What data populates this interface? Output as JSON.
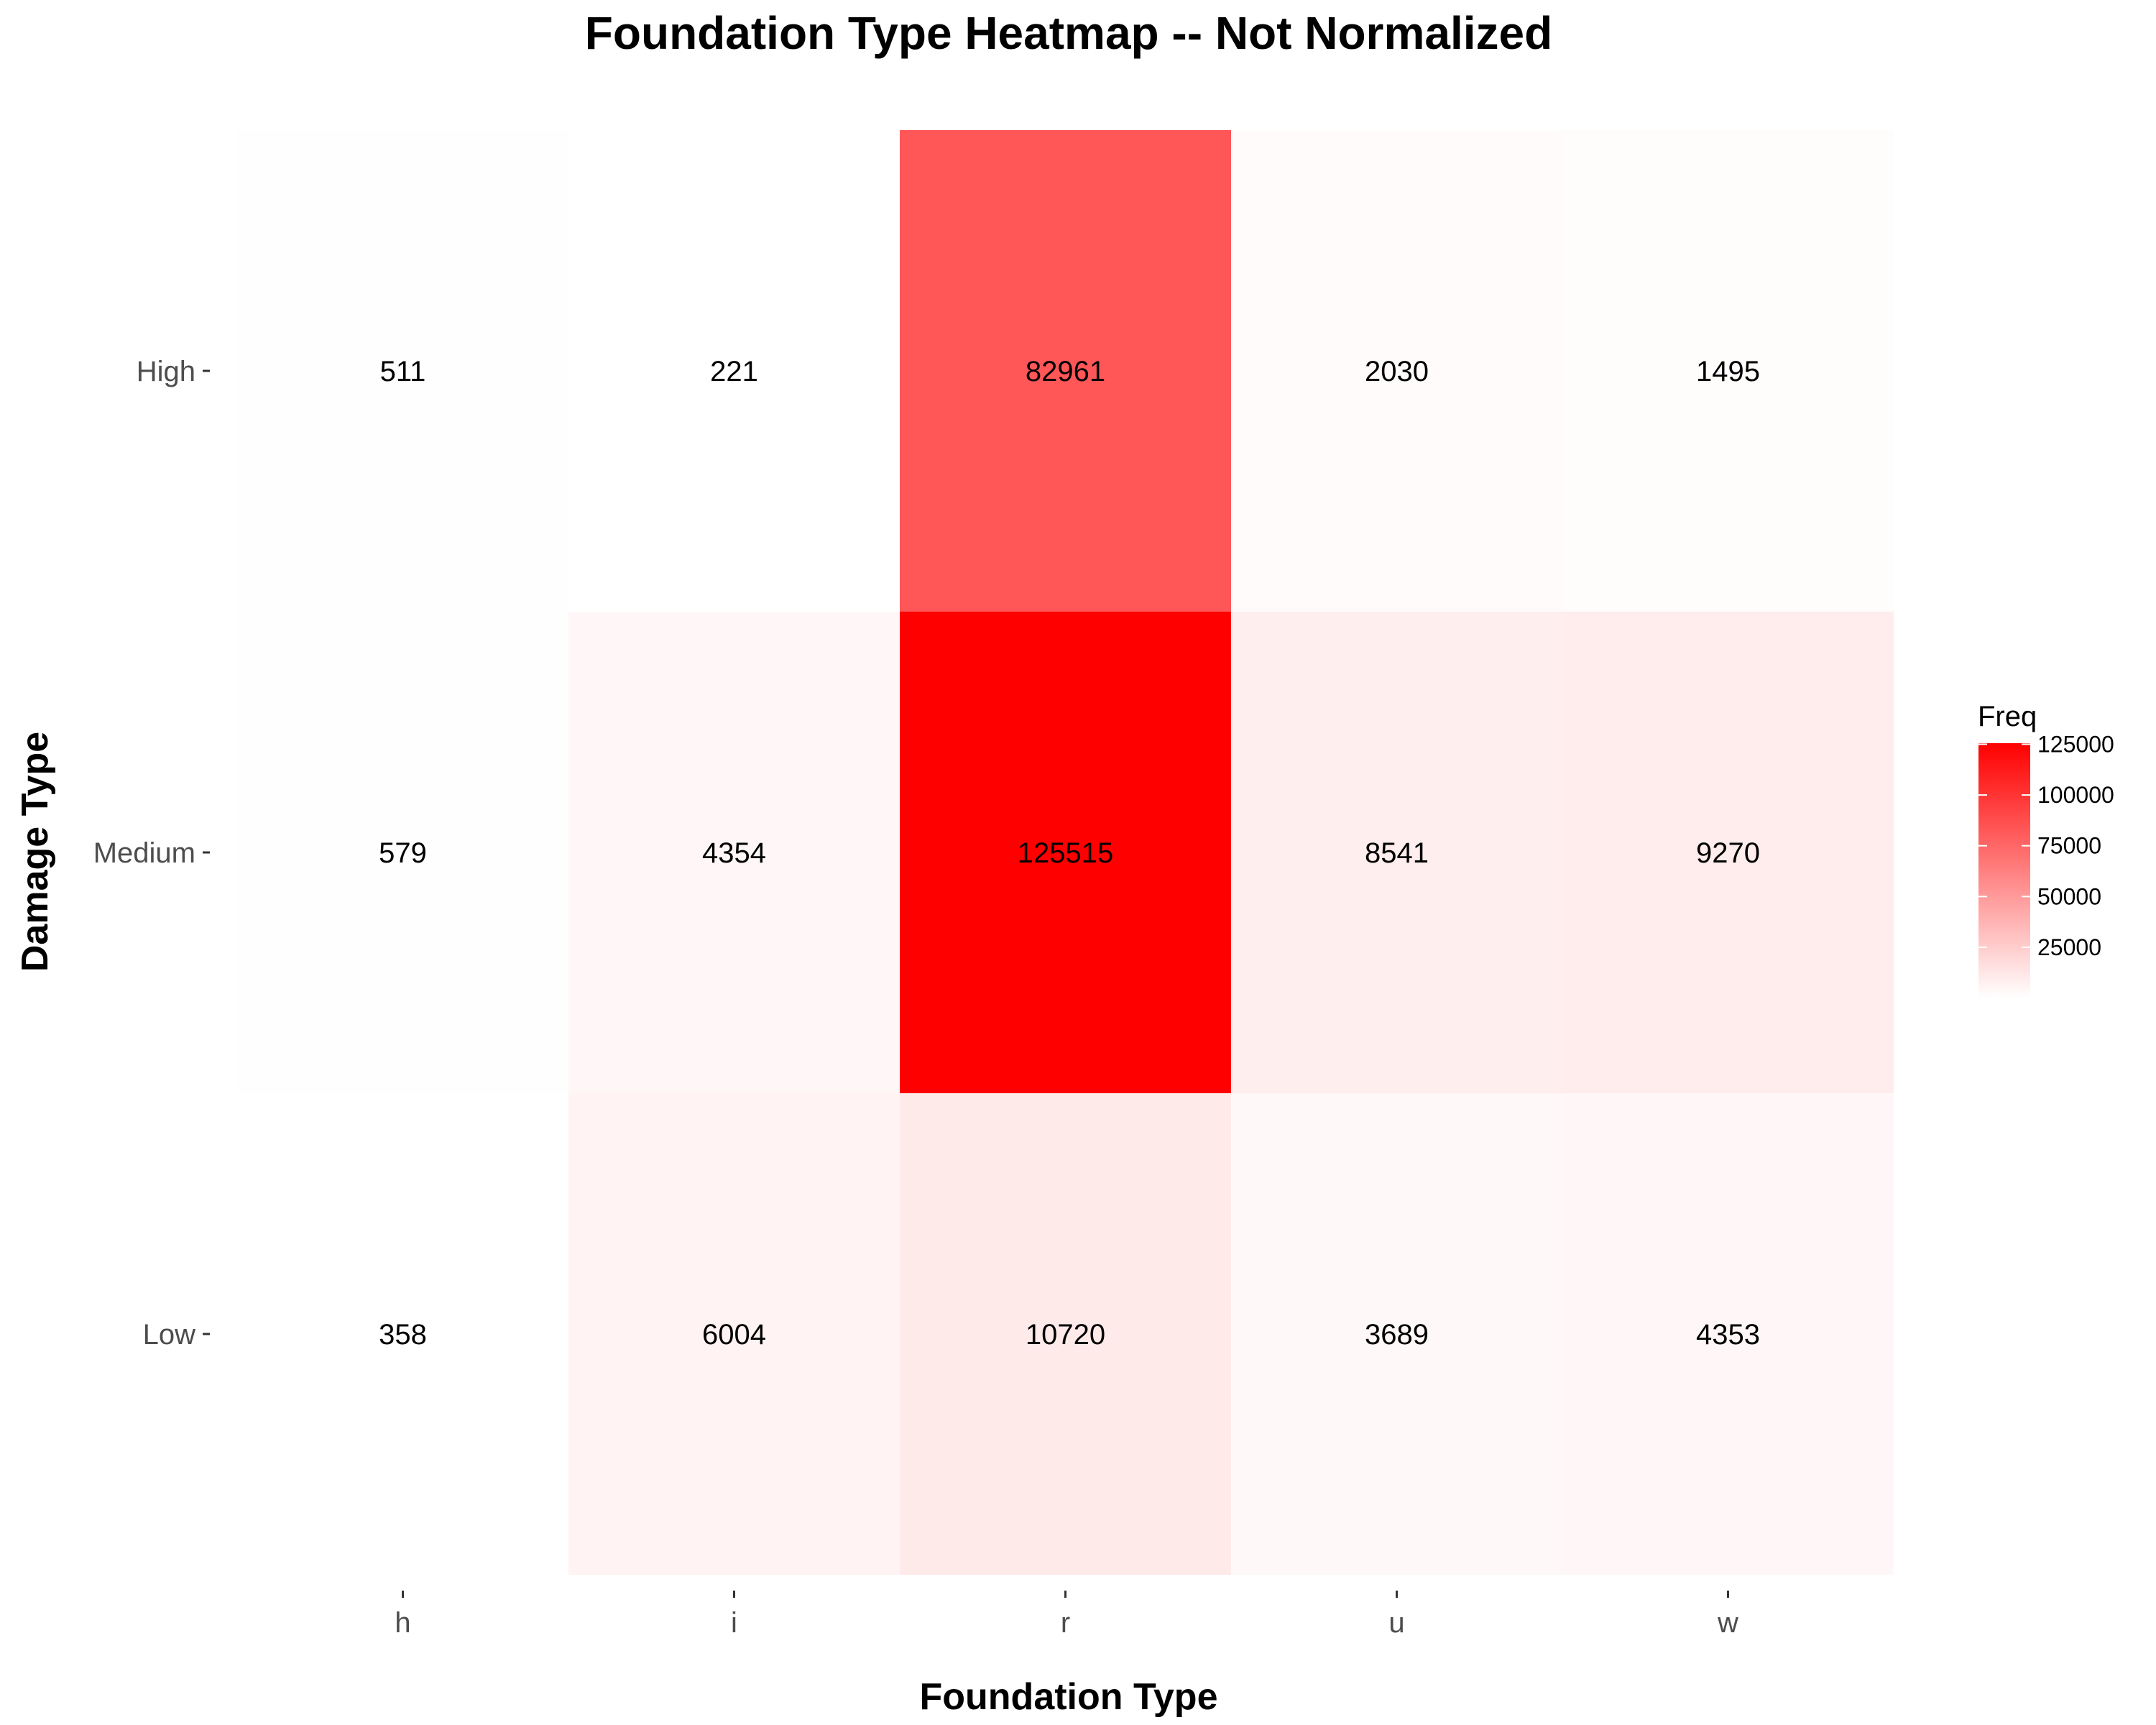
{
  "chart_data": {
    "type": "heatmap",
    "title": "Foundation Type Heatmap -- Not Normalized",
    "xlabel": "Foundation Type",
    "ylabel": "Damage Type",
    "x_categories": [
      "h",
      "i",
      "r",
      "u",
      "w"
    ],
    "y_categories": [
      "High",
      "Medium",
      "Low"
    ],
    "values": [
      [
        511,
        221,
        82961,
        2030,
        1495
      ],
      [
        579,
        4354,
        125515,
        8541,
        9270
      ],
      [
        358,
        6004,
        10720,
        3689,
        4353
      ]
    ],
    "color_scale": {
      "low_color": "#ffffff",
      "high_color": "#ff0000",
      "min": 221,
      "max": 125515
    },
    "legend": {
      "title": "Freq",
      "ticks": [
        25000,
        50000,
        75000,
        100000,
        125000
      ],
      "placement": "right"
    },
    "grid": false
  }
}
